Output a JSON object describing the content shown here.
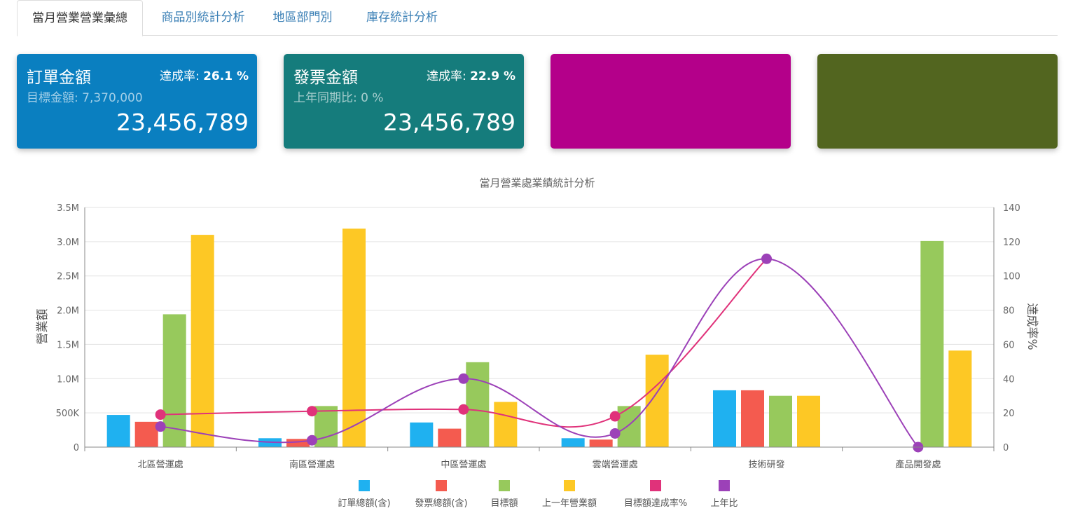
{
  "tabs": [
    {
      "label": "當月營業營業彙總",
      "active": true
    },
    {
      "label": "商品別統計分析",
      "active": false
    },
    {
      "label": "地區部門別",
      "active": false
    },
    {
      "label": "庫存統計分析",
      "active": false
    }
  ],
  "cards": [
    {
      "title": "訂單金額",
      "rate_label": "達成率:",
      "rate_value": "26.1 %",
      "sub": "目標金額: 7,370,000",
      "amount": "23,456,789",
      "color": "#0a7fc0"
    },
    {
      "title": "發票金額",
      "rate_label": "達成率:",
      "rate_value": "22.9 %",
      "sub": "上年同期比: 0 %",
      "amount": "23,456,789",
      "color": "#157c7c"
    },
    {
      "color": "#b4008a"
    },
    {
      "color": "#52651f"
    }
  ],
  "chart_data": {
    "type": "bar",
    "title": "當月營業處業績統計分析",
    "ylabel": "營業額",
    "y2label": "達成率%",
    "ylim": [
      0,
      3500000
    ],
    "y2lim": [
      0,
      140
    ],
    "yticks": [
      "0",
      "500K",
      "1.0M",
      "1.5M",
      "2.0M",
      "2.5M",
      "3.0M",
      "3.5M"
    ],
    "y2ticks": [
      "0",
      "20",
      "40",
      "60",
      "80",
      "100",
      "120",
      "140"
    ],
    "categories": [
      "北區營運處",
      "南區營運處",
      "中區營運處",
      "雲端營運處",
      "技術研發",
      "產品開發處"
    ],
    "series": [
      {
        "name": "訂單總額(含)",
        "kind": "bar",
        "color": "#1fb1f0",
        "values": [
          470000,
          130000,
          360000,
          130000,
          830000,
          0
        ]
      },
      {
        "name": "發票總額(含)",
        "kind": "bar",
        "color": "#f45b4f",
        "values": [
          370000,
          120000,
          270000,
          110000,
          830000,
          0
        ]
      },
      {
        "name": "目標額",
        "kind": "bar",
        "color": "#97c95c",
        "values": [
          1940000,
          600000,
          1240000,
          600000,
          750000,
          3010000
        ]
      },
      {
        "name": "上一年營業額",
        "kind": "bar",
        "color": "#fdc825",
        "values": [
          3100000,
          3190000,
          660000,
          1350000,
          750000,
          1410000
        ]
      },
      {
        "name": "目標額達成率%",
        "kind": "line",
        "color": "#e0327a",
        "values": [
          19,
          21,
          22,
          18,
          null,
          null
        ]
      },
      {
        "name": "上年比",
        "kind": "line",
        "color": "#9c41b8",
        "values": [
          12,
          4,
          40,
          8,
          110,
          0
        ]
      }
    ],
    "grid": true,
    "legend": "bottom"
  }
}
